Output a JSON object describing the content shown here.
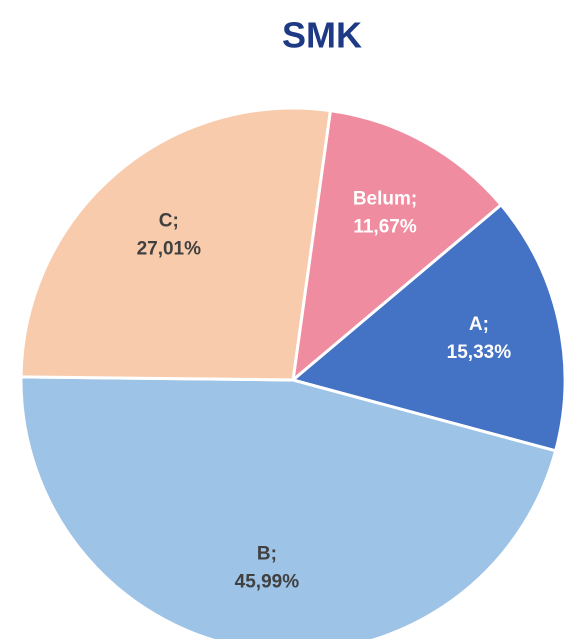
{
  "chart_data": {
    "type": "pie",
    "title": "SMK",
    "categories": [
      "Belum;",
      "A;",
      "B;",
      "C;"
    ],
    "values": [
      11.67,
      15.33,
      45.99,
      27.01
    ],
    "value_labels": [
      "11,67%",
      "15,33%",
      "45,99%",
      "27,01%"
    ],
    "colors": [
      "#f08ca0",
      "#4472c4",
      "#9dc3e6",
      "#f8cbad"
    ],
    "label_colors": [
      "#ffffff",
      "#ffffff",
      "#404040",
      "#404040"
    ]
  }
}
